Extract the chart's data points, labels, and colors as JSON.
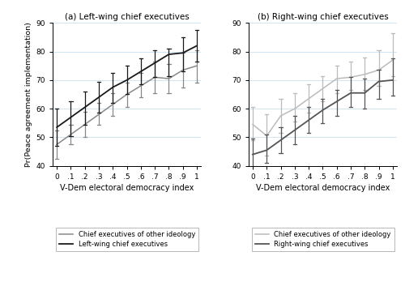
{
  "x": [
    0.0,
    0.1,
    0.2,
    0.3,
    0.4,
    0.5,
    0.6,
    0.7,
    0.8,
    0.9,
    1.0
  ],
  "left_main_y": [
    53.5,
    57.0,
    60.5,
    64.0,
    67.5,
    70.0,
    73.0,
    76.0,
    79.0,
    79.5,
    82.0
  ],
  "left_main_lo": [
    47.0,
    50.5,
    54.5,
    58.5,
    62.0,
    65.0,
    68.5,
    71.0,
    71.5,
    73.0,
    76.5
  ],
  "left_main_hi": [
    60.0,
    62.5,
    66.0,
    69.5,
    72.5,
    75.0,
    77.5,
    80.5,
    81.0,
    85.0,
    87.5
  ],
  "left_other_y": [
    47.5,
    51.0,
    54.5,
    58.0,
    61.5,
    65.0,
    68.0,
    71.0,
    70.5,
    73.5,
    75.0
  ],
  "left_other_lo": [
    42.5,
    47.5,
    50.0,
    54.5,
    57.5,
    60.5,
    64.0,
    65.5,
    65.5,
    67.5,
    69.0
  ],
  "left_other_hi": [
    52.5,
    54.5,
    59.0,
    62.0,
    65.5,
    69.0,
    72.5,
    76.5,
    75.5,
    79.5,
    80.5
  ],
  "right_main_y": [
    44.0,
    45.5,
    49.0,
    52.5,
    56.0,
    59.5,
    62.5,
    65.5,
    65.5,
    69.5,
    70.0
  ],
  "right_main_lo": [
    38.5,
    41.0,
    44.5,
    47.5,
    51.5,
    55.0,
    57.5,
    60.5,
    60.0,
    63.5,
    64.5
  ],
  "right_main_hi": [
    49.5,
    51.0,
    53.5,
    57.5,
    60.5,
    63.5,
    66.5,
    71.0,
    70.5,
    73.5,
    77.5
  ],
  "right_other_y": [
    54.5,
    50.5,
    57.5,
    60.0,
    63.5,
    67.0,
    70.5,
    71.0,
    72.0,
    73.5,
    77.0
  ],
  "right_other_lo": [
    49.0,
    43.5,
    51.5,
    55.5,
    58.5,
    62.5,
    65.5,
    66.5,
    66.5,
    68.0,
    71.5
  ],
  "right_other_hi": [
    60.5,
    58.0,
    63.5,
    65.5,
    68.5,
    71.5,
    75.0,
    76.5,
    78.0,
    80.5,
    86.5
  ],
  "panel_a_title": "(a) Left-wing chief executives",
  "panel_b_title": "(b) Right-wing chief executives",
  "ylabel": "Pr(Peace agreement implementation)",
  "xlabel": "V-Dem electoral democracy index",
  "ylim": [
    40,
    90
  ],
  "yticks": [
    40,
    50,
    60,
    70,
    80,
    90
  ],
  "xticks": [
    0.0,
    0.1,
    0.2,
    0.3,
    0.4,
    0.5,
    0.6,
    0.7,
    0.8,
    0.9,
    1.0
  ],
  "xtick_labels": [
    "0",
    ".1",
    ".2",
    ".3",
    ".4",
    ".5",
    ".6",
    ".7",
    ".8",
    ".9",
    "1"
  ],
  "color_black": "#1a1a1a",
  "color_dark_gray": "#555555",
  "color_gray": "#888888",
  "color_light_gray": "#bbbbbb",
  "legend_a_other": "Chief executives of other ideology",
  "legend_a_main": "Left-wing chief executives",
  "legend_b_other": "Chief executives of other ideology",
  "legend_b_main": "Right-wing chief executives",
  "grid_color": "#c8dff0",
  "fig_width": 5.0,
  "fig_height": 3.53,
  "dpi": 100
}
